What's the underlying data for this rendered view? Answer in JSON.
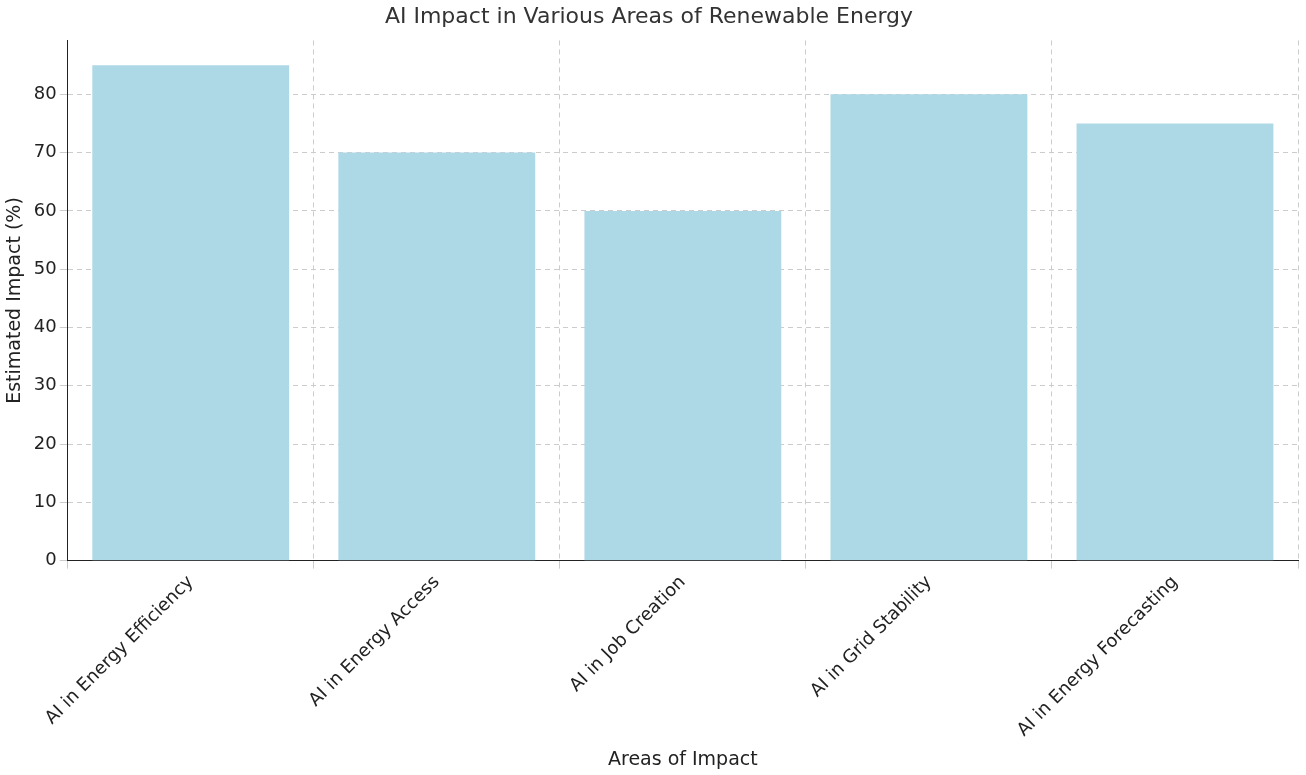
{
  "chart_data": {
    "type": "bar",
    "title": "AI Impact in Various Areas of Renewable Energy",
    "xlabel": "Areas of Impact",
    "ylabel": "Estimated Impact (%)",
    "categories": [
      "AI in Energy Efficiency",
      "AI in Energy Access",
      "AI in Job Creation",
      "AI in Grid Stability",
      "AI in Energy Forecasting"
    ],
    "values": [
      85,
      70,
      60,
      80,
      75
    ],
    "color": "#add8e6",
    "ylim": [
      0,
      89.25
    ],
    "yticks": [
      0,
      10,
      20,
      30,
      40,
      50,
      60,
      70,
      80
    ],
    "grid": true,
    "line_style": "dashed"
  }
}
